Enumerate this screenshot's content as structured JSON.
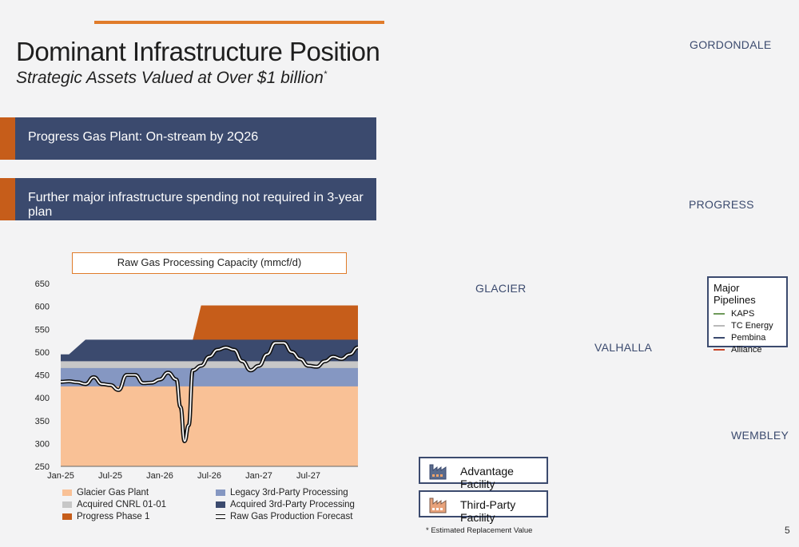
{
  "header": {
    "title": "Dominant Infrastructure Position",
    "subtitle": "Strategic Assets Valued at Over $1 billion",
    "subtitle_mark": "*"
  },
  "banners": [
    {
      "text": "Progress Gas Plant: On-stream by 2Q26"
    },
    {
      "text": "Further major infrastructure spending not required in 3-year plan"
    }
  ],
  "chart_data": {
    "type": "area",
    "title": "Raw Gas Processing Capacity (mmcf/d)",
    "xlabel": "",
    "ylabel": "",
    "ylim": [
      250,
      650
    ],
    "yticks": [
      "650",
      "600",
      "550",
      "500",
      "450",
      "400",
      "350",
      "300",
      "250"
    ],
    "xticks": [
      "Jan-25",
      "Jul-25",
      "Jan-26",
      "Jul-26",
      "Jan-27",
      "Jul-27"
    ],
    "x_range_months": [
      0,
      36
    ],
    "legend_position": "bottom",
    "stacked_series": [
      {
        "name": "Glacier Gas Plant",
        "color": "#f9c196",
        "points": [
          [
            0,
            425
          ],
          [
            36,
            425
          ]
        ]
      },
      {
        "name": "Legacy 3rd-Party Processing",
        "color": "#8597c2",
        "points": [
          [
            0,
            465
          ],
          [
            36,
            465
          ]
        ]
      },
      {
        "name": "Acquired CNRL 01-01",
        "color": "#c7c7c7",
        "points": [
          [
            0,
            480
          ],
          [
            36,
            480
          ]
        ]
      },
      {
        "name": "Acquired 3rd-Party Processing",
        "color": "#3b4a6e",
        "points": [
          [
            0,
            495
          ],
          [
            1,
            495
          ],
          [
            3,
            527
          ],
          [
            36,
            527
          ]
        ]
      },
      {
        "name": "Progress Phase 1",
        "color": "#c65d1a",
        "points": [
          [
            16,
            527
          ],
          [
            17,
            602
          ],
          [
            36,
            602
          ]
        ]
      }
    ],
    "forecast": {
      "name": "Raw Gas Production Forecast",
      "x": [
        0,
        1,
        2,
        3,
        4,
        5,
        6,
        7,
        8,
        9,
        10,
        11,
        12,
        13,
        14,
        14.5,
        15,
        15.5,
        16,
        17,
        18,
        19,
        20,
        21,
        22,
        23,
        24,
        25,
        26,
        27,
        28,
        29,
        30,
        31,
        32,
        33,
        34,
        35,
        36
      ],
      "y": [
        435,
        436,
        434,
        430,
        445,
        430,
        428,
        417,
        450,
        450,
        432,
        433,
        440,
        455,
        440,
        380,
        305,
        340,
        460,
        470,
        490,
        505,
        510,
        505,
        480,
        460,
        470,
        495,
        520,
        520,
        500,
        485,
        470,
        468,
        480,
        490,
        485,
        495,
        510
      ]
    }
  },
  "map": {
    "labels": [
      "GORDONDALE",
      "PROGRESS",
      "GLACIER",
      "VALHALLA",
      "WEMBLEY"
    ],
    "pipelines_title": "Major Pipelines",
    "pipelines": [
      {
        "name": "KAPS",
        "color": "#6e9a5a"
      },
      {
        "name": "TC Energy",
        "color": "#b9b9b9"
      },
      {
        "name": "Pembina",
        "color": "#3b4a6e"
      },
      {
        "name": "Alliance",
        "color": "#c9462a"
      }
    ],
    "facility_legend": [
      {
        "label": "Advantage Facility",
        "icon": "factory-icon-orange"
      },
      {
        "label": "Third-Party Facility",
        "icon": "factory-icon-outline"
      }
    ]
  },
  "footer": {
    "footnote": "* Estimated Replacement Value",
    "page": "5"
  },
  "colors": {
    "navy": "#3b4a6e",
    "orange": "#c65d1a",
    "land": "#f9c196"
  }
}
